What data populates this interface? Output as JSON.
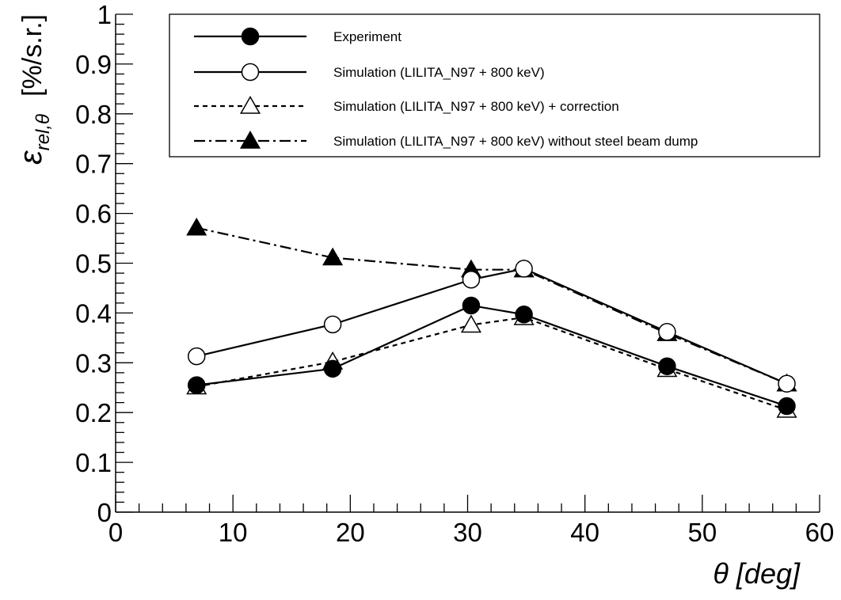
{
  "chart_data": {
    "type": "line",
    "xlabel": "θ   [deg]",
    "ylabel": {
      "symbol": "ε",
      "subscript": "rel,θ",
      "unit": "[%/s.r.]"
    },
    "xlim": [
      0,
      60
    ],
    "ylim": [
      0,
      1
    ],
    "xticks": [
      "0",
      "10",
      "20",
      "30",
      "40",
      "50",
      "60"
    ],
    "yticks": [
      "0",
      "0.1",
      "0.2",
      "0.3",
      "0.4",
      "0.5",
      "0.6",
      "0.7",
      "0.8",
      "0.9",
      "1"
    ],
    "grid": false,
    "legend_position": "top-right",
    "series": [
      {
        "name": "Experiment",
        "marker": "filled-circle",
        "line": "solid",
        "x": [
          6.9,
          18.5,
          30.3,
          34.8,
          47.0,
          57.2
        ],
        "y": [
          0.255,
          0.288,
          0.415,
          0.397,
          0.293,
          0.213
        ]
      },
      {
        "name": "Simulation (LILITA_N97 + 800 keV)",
        "marker": "open-circle",
        "line": "solid",
        "x": [
          6.9,
          18.5,
          30.3,
          34.8,
          47.0,
          57.2
        ],
        "y": [
          0.313,
          0.377,
          0.467,
          0.489,
          0.362,
          0.258
        ]
      },
      {
        "name": "Simulation (LILITA_N97 + 800 keV) + correction",
        "marker": "open-triangle",
        "line": "dashed",
        "x": [
          6.9,
          18.5,
          30.3,
          34.8,
          47.0,
          57.2
        ],
        "y": [
          0.252,
          0.302,
          0.376,
          0.391,
          0.287,
          0.205
        ]
      },
      {
        "name": "Simulation (LILITA_N97 + 800 keV) without steel beam dump",
        "marker": "filled-triangle",
        "line": "dashdot",
        "x": [
          6.9,
          18.5,
          30.3,
          34.8,
          47.0,
          57.2
        ],
        "y": [
          0.571,
          0.511,
          0.487,
          0.487,
          0.359,
          0.258
        ]
      }
    ]
  }
}
